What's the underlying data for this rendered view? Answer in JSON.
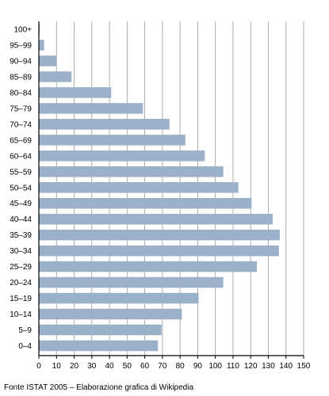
{
  "chart_data": {
    "type": "bar",
    "orientation": "horizontal",
    "categories": [
      "0–4",
      "5–9",
      "10–14",
      "15–19",
      "20–24",
      "25–29",
      "30–34",
      "35–39",
      "40–44",
      "45–49",
      "50–54",
      "55–59",
      "60–64",
      "65–69",
      "70–74",
      "75–79",
      "80–84",
      "85–89",
      "90–94",
      "95–99",
      "100+"
    ],
    "values": [
      67.5,
      69.5,
      81,
      90.5,
      104.5,
      123.5,
      136,
      136.5,
      132.5,
      120.5,
      113,
      104.5,
      94,
      83,
      74,
      59,
      41,
      18.5,
      10,
      3,
      0.5
    ],
    "xlim": [
      0,
      150
    ],
    "xticks": [
      0,
      10,
      20,
      30,
      40,
      50,
      60,
      70,
      80,
      90,
      100,
      110,
      120,
      130,
      140,
      150
    ],
    "grid": true,
    "bar_color": "#9bb1c9",
    "grid_color": "#999999",
    "source": "Fonte ISTAT 2005 – Elaborazione grafica di Wikipedia"
  }
}
